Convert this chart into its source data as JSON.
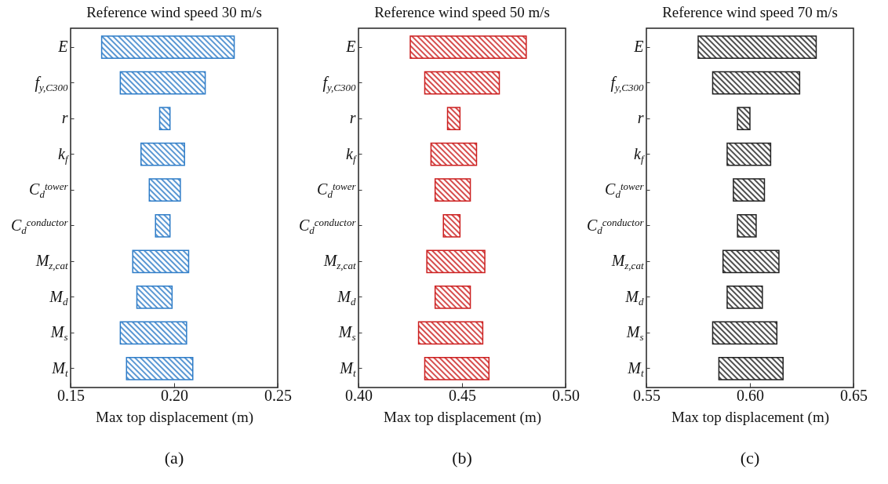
{
  "chart_data": [
    {
      "type": "bar",
      "orientation": "horizontal",
      "title": "Reference wind speed 30 m/s",
      "xlabel": "Max top displacement (m)",
      "color": "#2f7dc8",
      "categories": [
        "E",
        "f$_{y,C300}$",
        "r",
        "k$_{f}$",
        "C$_{d}$$^{tower}$",
        "C$_{d}$$^{conductor}$",
        "M$_{z,cat}$",
        "M$_{d}$",
        "M$_{s}$",
        "M$_{t}$"
      ],
      "base": [
        0.165,
        0.174,
        0.193,
        0.184,
        0.188,
        0.191,
        0.18,
        0.182,
        0.174,
        0.177
      ],
      "values": [
        0.064,
        0.041,
        0.005,
        0.021,
        0.015,
        0.007,
        0.027,
        0.017,
        0.032,
        0.032
      ],
      "xlim": [
        0.15,
        0.25
      ],
      "xticks": [
        {
          "value": 0.15,
          "label": "0.15"
        },
        {
          "value": 0.2,
          "label": "0.20"
        },
        {
          "value": 0.25,
          "label": "0.25"
        }
      ],
      "annotations": [
        "(a)"
      ]
    },
    {
      "type": "bar",
      "orientation": "horizontal",
      "title": "Reference wind speed 50 m/s",
      "xlabel": "Max top displacement (m)",
      "color": "#cc1f1f",
      "categories": [
        "E",
        "f$_{y,C300}$",
        "r",
        "k$_{f}$",
        "C$_{d}$$^{tower}$",
        "C$_{d}$$^{conductor}$",
        "M$_{z,cat}$",
        "M$_{d}$",
        "M$_{s}$",
        "M$_{t}$"
      ],
      "base": [
        0.425,
        0.432,
        0.443,
        0.435,
        0.437,
        0.441,
        0.433,
        0.437,
        0.429,
        0.432
      ],
      "values": [
        0.056,
        0.036,
        0.006,
        0.022,
        0.017,
        0.008,
        0.028,
        0.017,
        0.031,
        0.031
      ],
      "xlim": [
        0.4,
        0.5
      ],
      "xticks": [
        {
          "value": 0.4,
          "label": "0.40"
        },
        {
          "value": 0.45,
          "label": "0.45"
        },
        {
          "value": 0.5,
          "label": "0.50"
        }
      ],
      "annotations": [
        "(b)"
      ]
    },
    {
      "type": "bar",
      "orientation": "horizontal",
      "title": "Reference wind speed 70 m/s",
      "xlabel": "Max top displacement (m)",
      "color": "#222222",
      "categories": [
        "E",
        "f$_{y,C300}$",
        "r",
        "k$_{f}$",
        "C$_{d}$$^{tower}$",
        "C$_{d}$$^{conductor}$",
        "M$_{z,cat}$",
        "M$_{d}$",
        "M$_{s}$",
        "M$_{t}$"
      ],
      "base": [
        0.575,
        0.582,
        0.594,
        0.589,
        0.592,
        0.594,
        0.587,
        0.589,
        0.582,
        0.585
      ],
      "values": [
        0.057,
        0.042,
        0.006,
        0.021,
        0.015,
        0.009,
        0.027,
        0.017,
        0.031,
        0.031
      ],
      "xlim": [
        0.55,
        0.65
      ],
      "xticks": [
        {
          "value": 0.55,
          "label": "0.55"
        },
        {
          "value": 0.6,
          "label": "0.60"
        },
        {
          "value": 0.65,
          "label": "0.65"
        }
      ],
      "annotations": [
        "(c)"
      ]
    }
  ]
}
